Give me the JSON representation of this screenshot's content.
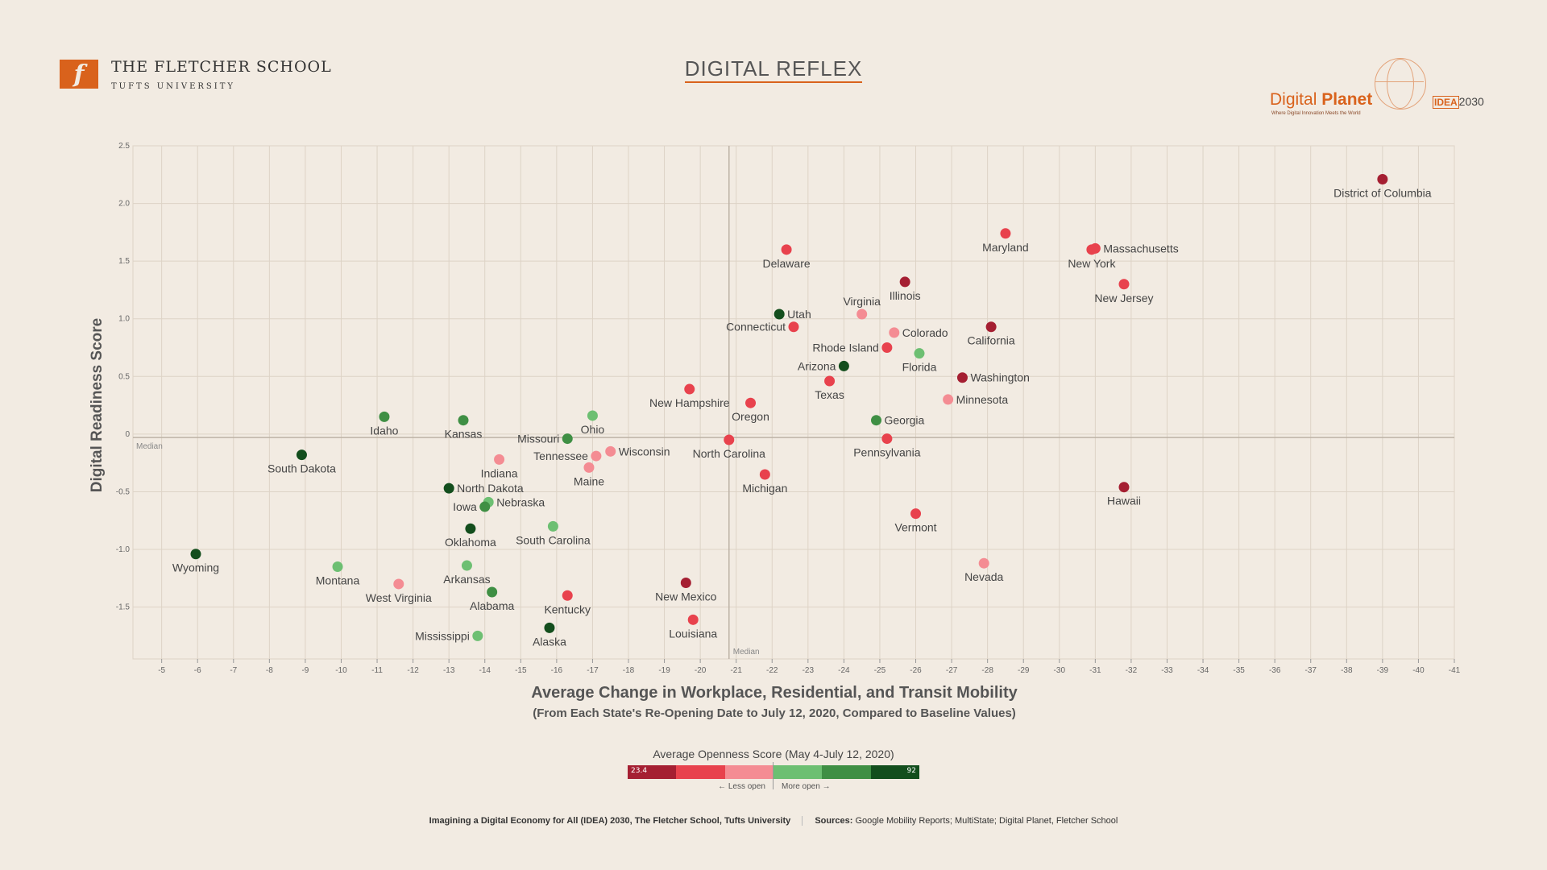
{
  "branding": {
    "fletcher_mark": "f",
    "fletcher_name": "THE FLETCHER SCHOOL",
    "fletcher_university": "TUFTS UNIVERSITY",
    "digital_planet_prefix": "Digital ",
    "digital_planet_suffix": "Planet",
    "digital_planet_tagline": "Where Digital Innovation Meets the World",
    "idea_logo_prefix": "IDEA",
    "idea_logo_suffix": "2030"
  },
  "page_title": "DIGITAL REFLEX",
  "colors": {
    "background": "#f2ebe2",
    "accent": "#d9621c",
    "openness_scale": [
      "#a51f32",
      "#e8424d",
      "#f48c93",
      "#6dbf72",
      "#3f8f44",
      "#134e1d"
    ]
  },
  "legend": {
    "title": "Average Openness Score (May 4-July 12, 2020)",
    "min_label": "23.4",
    "max_label": "92",
    "less_label": "Less open",
    "more_label": "More open"
  },
  "footer": {
    "credit": "Imagining a Digital Economy for All (IDEA) 2030, The Fletcher School, Tufts University",
    "sources_label": "Sources:",
    "sources_text": "Google Mobility Reports; MultiState; Digital Planet, Fletcher School"
  },
  "chart_data": {
    "type": "scatter",
    "xlabel": "Average Change in Workplace, Residential, and Transit Mobility",
    "xlabel_sub": "(From Each State's Re-Opening Date to July 12, 2020, Compared to Baseline Values)",
    "ylabel": "Digital Readiness Score",
    "xlim": [
      -4.2,
      -41
    ],
    "ylim": [
      -1.95,
      2.5
    ],
    "x_ticks": [
      -5,
      -6,
      -7,
      -8,
      -9,
      -10,
      -11,
      -12,
      -13,
      -14,
      -15,
      -16,
      -17,
      -18,
      -19,
      -20,
      -21,
      -22,
      -23,
      -24,
      -25,
      -26,
      -27,
      -28,
      -29,
      -30,
      -31,
      -32,
      -33,
      -34,
      -35,
      -36,
      -37,
      -38,
      -39,
      -40,
      -41
    ],
    "y_ticks": [
      2.5,
      2.0,
      1.5,
      1.0,
      0.5,
      0,
      -0.5,
      -1.0,
      -1.5
    ],
    "y_tick_labels": [
      "2.5",
      "2.0",
      "1.5",
      "1.0",
      "0.5",
      "0",
      "-0.5",
      "-1.0",
      "-1.5"
    ],
    "grid": true,
    "median_x": -20.8,
    "median_y": -0.03,
    "median_label": "Median",
    "points": [
      {
        "name": "District of Columbia",
        "x": -39.0,
        "y": 2.21,
        "cat": 0,
        "lp": "b"
      },
      {
        "name": "Maryland",
        "x": -28.5,
        "y": 1.74,
        "cat": 1,
        "lp": "b"
      },
      {
        "name": "Massachusetts",
        "x": -31.0,
        "y": 1.61,
        "cat": 1,
        "lp": "r"
      },
      {
        "name": "New York",
        "x": -30.9,
        "y": 1.6,
        "cat": 1,
        "lp": "b"
      },
      {
        "name": "New Jersey",
        "x": -31.8,
        "y": 1.3,
        "cat": 1,
        "lp": "b"
      },
      {
        "name": "Delaware",
        "x": -22.4,
        "y": 1.6,
        "cat": 1,
        "lp": "b"
      },
      {
        "name": "Illinois",
        "x": -25.7,
        "y": 1.32,
        "cat": 0,
        "lp": "b"
      },
      {
        "name": "Virginia",
        "x": -24.5,
        "y": 1.04,
        "cat": 2,
        "lp": "t"
      },
      {
        "name": "Utah",
        "x": -22.2,
        "y": 1.04,
        "cat": 5,
        "lp": "r"
      },
      {
        "name": "Connecticut",
        "x": -22.6,
        "y": 0.93,
        "cat": 1,
        "lp": "l"
      },
      {
        "name": "Colorado",
        "x": -25.4,
        "y": 0.88,
        "cat": 2,
        "lp": "r"
      },
      {
        "name": "California",
        "x": -28.1,
        "y": 0.93,
        "cat": 0,
        "lp": "b"
      },
      {
        "name": "Rhode Island",
        "x": -25.2,
        "y": 0.75,
        "cat": 1,
        "lp": "l"
      },
      {
        "name": "Florida",
        "x": -26.1,
        "y": 0.7,
        "cat": 3,
        "lp": "b"
      },
      {
        "name": "Arizona",
        "x": -24.0,
        "y": 0.59,
        "cat": 5,
        "lp": "l"
      },
      {
        "name": "Washington",
        "x": -27.3,
        "y": 0.49,
        "cat": 0,
        "lp": "r"
      },
      {
        "name": "Texas",
        "x": -23.6,
        "y": 0.46,
        "cat": 1,
        "lp": "b"
      },
      {
        "name": "New Hampshire",
        "x": -19.7,
        "y": 0.39,
        "cat": 1,
        "lp": "b"
      },
      {
        "name": "Oregon",
        "x": -21.4,
        "y": 0.27,
        "cat": 1,
        "lp": "b"
      },
      {
        "name": "Minnesota",
        "x": -26.9,
        "y": 0.3,
        "cat": 2,
        "lp": "r"
      },
      {
        "name": "Idaho",
        "x": -11.2,
        "y": 0.15,
        "cat": 4,
        "lp": "b"
      },
      {
        "name": "Kansas",
        "x": -13.4,
        "y": 0.12,
        "cat": 4,
        "lp": "b"
      },
      {
        "name": "Ohio",
        "x": -17.0,
        "y": 0.16,
        "cat": 3,
        "lp": "b"
      },
      {
        "name": "Georgia",
        "x": -24.9,
        "y": 0.12,
        "cat": 4,
        "lp": "r"
      },
      {
        "name": "Missouri",
        "x": -16.3,
        "y": -0.04,
        "cat": 4,
        "lp": "l"
      },
      {
        "name": "North Carolina",
        "x": -20.8,
        "y": -0.05,
        "cat": 1,
        "lp": "b"
      },
      {
        "name": "Pennsylvania",
        "x": -25.2,
        "y": -0.04,
        "cat": 1,
        "lp": "b"
      },
      {
        "name": "South Dakota",
        "x": -8.9,
        "y": -0.18,
        "cat": 5,
        "lp": "b"
      },
      {
        "name": "Tennessee",
        "x": -17.1,
        "y": -0.19,
        "cat": 2,
        "lp": "l"
      },
      {
        "name": "Wisconsin",
        "x": -17.5,
        "y": -0.15,
        "cat": 2,
        "lp": "r"
      },
      {
        "name": "Indiana",
        "x": -14.4,
        "y": -0.22,
        "cat": 2,
        "lp": "b"
      },
      {
        "name": "Maine",
        "x": -16.9,
        "y": -0.29,
        "cat": 2,
        "lp": "b"
      },
      {
        "name": "Michigan",
        "x": -21.8,
        "y": -0.35,
        "cat": 1,
        "lp": "b"
      },
      {
        "name": "Hawaii",
        "x": -31.8,
        "y": -0.46,
        "cat": 0,
        "lp": "b"
      },
      {
        "name": "North Dakota",
        "x": -13.0,
        "y": -0.47,
        "cat": 5,
        "lp": "r"
      },
      {
        "name": "Nebraska",
        "x": -14.1,
        "y": -0.59,
        "cat": 3,
        "lp": "r"
      },
      {
        "name": "Iowa",
        "x": -14.0,
        "y": -0.63,
        "cat": 4,
        "lp": "l"
      },
      {
        "name": "Vermont",
        "x": -26.0,
        "y": -0.69,
        "cat": 1,
        "lp": "b"
      },
      {
        "name": "South Carolina",
        "x": -15.9,
        "y": -0.8,
        "cat": 3,
        "lp": "b"
      },
      {
        "name": "Oklahoma",
        "x": -13.6,
        "y": -0.82,
        "cat": 5,
        "lp": "b"
      },
      {
        "name": "Wyoming",
        "x": -5.95,
        "y": -1.04,
        "cat": 5,
        "lp": "b"
      },
      {
        "name": "Montana",
        "x": -9.9,
        "y": -1.15,
        "cat": 3,
        "lp": "b"
      },
      {
        "name": "Arkansas",
        "x": -13.5,
        "y": -1.14,
        "cat": 3,
        "lp": "b"
      },
      {
        "name": "Nevada",
        "x": -27.9,
        "y": -1.12,
        "cat": 2,
        "lp": "b"
      },
      {
        "name": "West Virginia",
        "x": -11.6,
        "y": -1.3,
        "cat": 2,
        "lp": "b"
      },
      {
        "name": "New Mexico",
        "x": -19.6,
        "y": -1.29,
        "cat": 0,
        "lp": "b"
      },
      {
        "name": "Alabama",
        "x": -14.2,
        "y": -1.37,
        "cat": 4,
        "lp": "b"
      },
      {
        "name": "Kentucky",
        "x": -16.3,
        "y": -1.4,
        "cat": 1,
        "lp": "b"
      },
      {
        "name": "Louisiana",
        "x": -19.8,
        "y": -1.61,
        "cat": 1,
        "lp": "b"
      },
      {
        "name": "Alaska",
        "x": -15.8,
        "y": -1.68,
        "cat": 5,
        "lp": "b"
      },
      {
        "name": "Mississippi",
        "x": -13.8,
        "y": -1.75,
        "cat": 3,
        "lp": "l"
      }
    ]
  }
}
